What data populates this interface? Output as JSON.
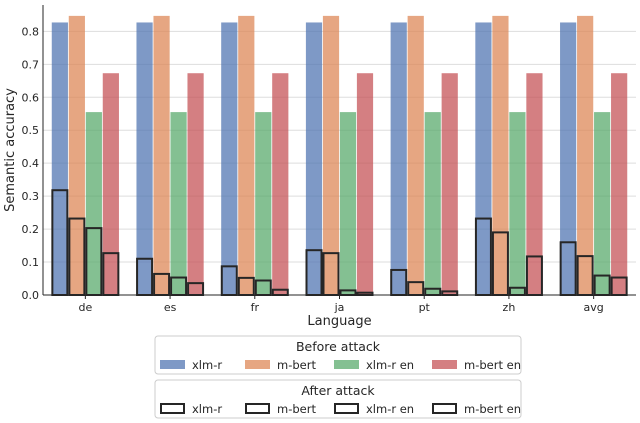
{
  "chart_data": {
    "type": "bar",
    "xlabel": "Language",
    "ylabel": "Semantic accuracy",
    "categories": [
      "de",
      "es",
      "fr",
      "ja",
      "pt",
      "zh",
      "avg"
    ],
    "ylim": [
      0,
      0.88
    ],
    "yticks": [
      "0.0",
      "0.1",
      "0.2",
      "0.3",
      "0.4",
      "0.5",
      "0.6",
      "0.7",
      "0.8"
    ],
    "grid": "horizontal",
    "legend_placement": "below",
    "legend_groups": [
      {
        "title": "Before attack",
        "style": "filled",
        "series": [
          {
            "name": "xlm-r",
            "color": "#4C72B0",
            "values": [
              0.827,
              0.827,
              0.827,
              0.827,
              0.827,
              0.827,
              0.827
            ]
          },
          {
            "name": "m-bert",
            "color": "#DD8452",
            "values": [
              0.847,
              0.847,
              0.847,
              0.847,
              0.847,
              0.847,
              0.847
            ]
          },
          {
            "name": "xlm-r en",
            "color": "#55A868",
            "values": [
              0.555,
              0.555,
              0.555,
              0.555,
              0.555,
              0.555,
              0.555
            ]
          },
          {
            "name": "m-bert en",
            "color": "#C44E52",
            "values": [
              0.673,
              0.673,
              0.673,
              0.673,
              0.673,
              0.673,
              0.673
            ]
          }
        ]
      },
      {
        "title": "After attack",
        "style": "outline",
        "series": [
          {
            "name": "xlm-r",
            "values": [
              0.318,
              0.11,
              0.087,
              0.136,
              0.076,
              0.232,
              0.16
            ]
          },
          {
            "name": "m-bert",
            "values": [
              0.232,
              0.064,
              0.052,
              0.127,
              0.039,
              0.19,
              0.118
            ]
          },
          {
            "name": "xlm-r en",
            "values": [
              0.203,
              0.053,
              0.044,
              0.014,
              0.019,
              0.022,
              0.059
            ]
          },
          {
            "name": "m-bert en",
            "values": [
              0.127,
              0.036,
              0.016,
              0.007,
              0.011,
              0.117,
              0.053
            ]
          }
        ]
      }
    ]
  }
}
